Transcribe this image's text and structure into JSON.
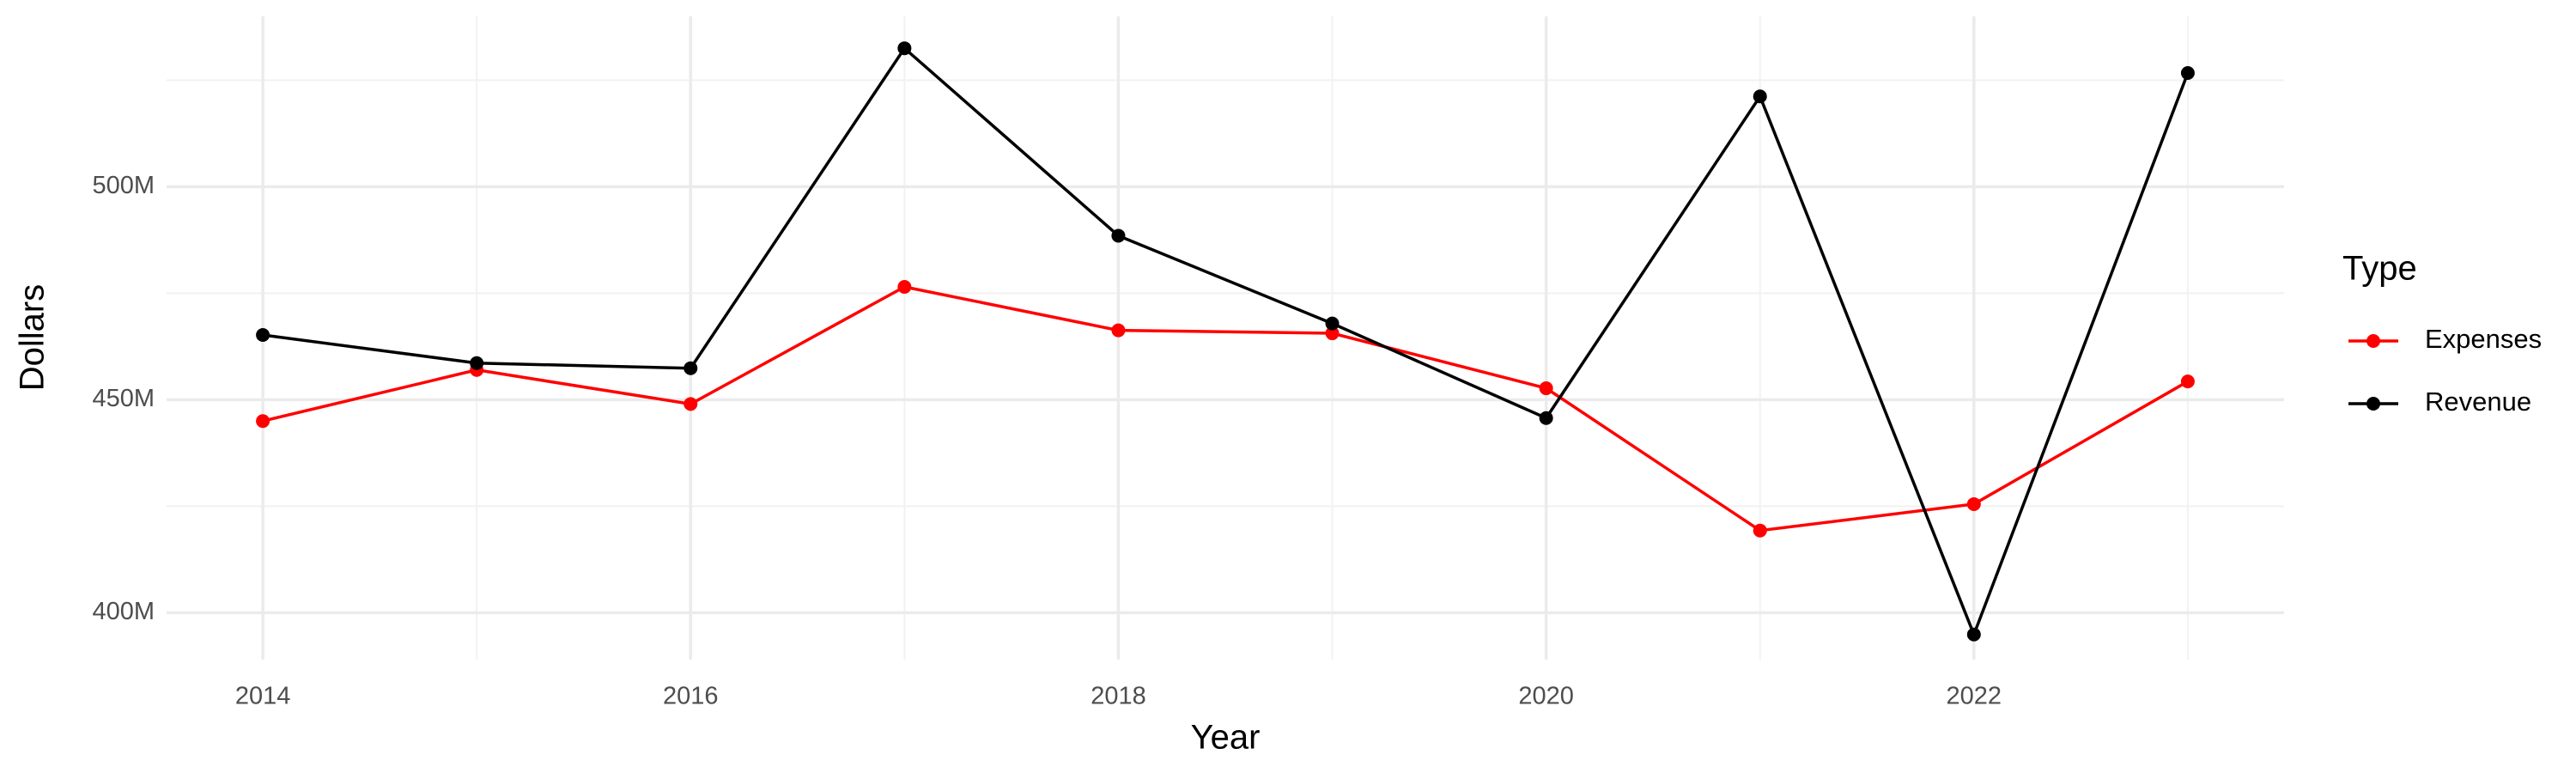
{
  "chart_data": {
    "type": "line",
    "x_label": "Year",
    "y_label": "Dollars",
    "x": [
      2014,
      2015,
      2016,
      2017,
      2018,
      2019,
      2020,
      2021,
      2022,
      2023
    ],
    "series": [
      {
        "name": "Expenses",
        "color": "#ff0000",
        "values": [
          445,
          457,
          449,
          476.5,
          466.3,
          465.6,
          452.7,
          419.3,
          425.5,
          454.3
        ]
      },
      {
        "name": "Revenue",
        "color": "#000000",
        "values": [
          465.2,
          458.6,
          457.4,
          532.5,
          488.5,
          467.9,
          445.7,
          521.2,
          394.9,
          526.7
        ]
      }
    ],
    "xlim": [
      2013.55,
      2023.45
    ],
    "xticks": [
      2014,
      2016,
      2018,
      2020,
      2022
    ],
    "ylim": [
      389,
      540
    ],
    "yticks": [
      {
        "value": 400,
        "label": "400M"
      },
      {
        "value": 450,
        "label": "450M"
      },
      {
        "value": 500,
        "label": "500M"
      }
    ],
    "grid": true,
    "legend_title": "Type",
    "legend_position": "right"
  }
}
